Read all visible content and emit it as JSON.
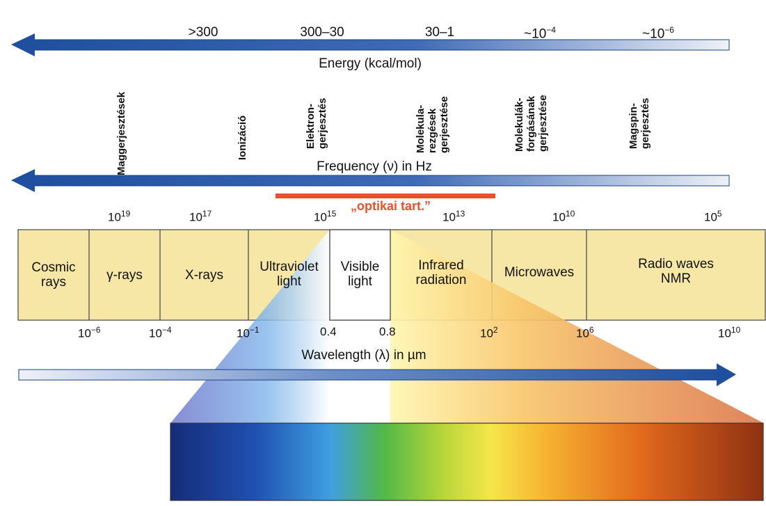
{
  "energy": {
    "title": "Energy (kcal/mol)",
    "values": [
      ">300",
      "300–30",
      "30–1",
      "~10",
      "~10"
    ],
    "exponents": [
      "",
      "",
      "",
      "−4",
      "−6"
    ]
  },
  "excitations": [
    {
      "lines": [
        "Maggerjesztések"
      ]
    },
    {
      "lines": [
        "Ionizáció"
      ]
    },
    {
      "lines": [
        "Elektron-",
        "gerjesztés"
      ]
    },
    {
      "lines": [
        "Molekula-",
        "rezgések",
        "gerjesztése"
      ]
    },
    {
      "lines": [
        "Molekulák-",
        "forgásának",
        "gerjesztése"
      ]
    },
    {
      "lines": [
        "Magspin-",
        "gerjesztés"
      ]
    }
  ],
  "frequency": {
    "title": "Frequency (ν) in Hz",
    "ticks": [
      {
        "base": "10",
        "exp": "19"
      },
      {
        "base": "10",
        "exp": "17"
      },
      {
        "base": "10",
        "exp": "15"
      },
      {
        "base": "10",
        "exp": "13"
      },
      {
        "base": "10",
        "exp": "10"
      },
      {
        "base": "10",
        "exp": "5"
      }
    ]
  },
  "optical_range_label": "„optikai tart.”",
  "regions": [
    {
      "lines": [
        "Cosmic",
        "rays"
      ]
    },
    {
      "lines": [
        "γ-rays"
      ]
    },
    {
      "lines": [
        "X-rays"
      ]
    },
    {
      "lines": [
        "Ultraviolet",
        "light"
      ]
    },
    {
      "lines": [
        "Visible",
        "light"
      ]
    },
    {
      "lines": [
        "Infrared",
        "radiation"
      ]
    },
    {
      "lines": [
        "Microwaves"
      ]
    },
    {
      "lines": [
        "Radio waves",
        "NMR"
      ]
    }
  ],
  "wavelength": {
    "title": "Wavelength (λ) in µm",
    "ticks": [
      {
        "base": "10",
        "exp": "−6"
      },
      {
        "base": "10",
        "exp": "−4"
      },
      {
        "base": "10",
        "exp": "−1"
      },
      {
        "base": "0.4",
        "exp": ""
      },
      {
        "base": "0.8",
        "exp": ""
      },
      {
        "base": "10",
        "exp": "2"
      },
      {
        "base": "10",
        "exp": "6"
      },
      {
        "base": "10",
        "exp": "10"
      }
    ]
  },
  "colors": {
    "arrow_dark": "#1f4f9e",
    "arrow_light": "#e9edf7",
    "band_fill": "#f7e7a6",
    "optical_bar": "#e6512c",
    "visible_box": "#ffffff"
  }
}
